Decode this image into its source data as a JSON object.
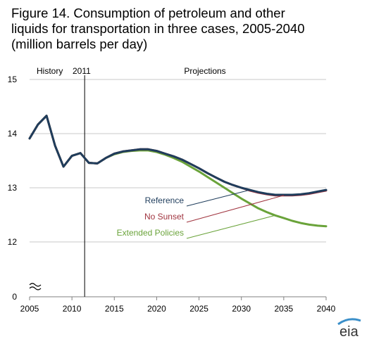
{
  "title_lines": [
    "Figure 14. Consumption of petroleum and other",
    "liquids for transportation in three cases, 2005-2040",
    "(million barrels per day)"
  ],
  "chart_data": {
    "type": "line",
    "title": "Figure 14. Consumption of petroleum and other liquids for transportation in three cases, 2005-2040 (million barrels per day)",
    "xlabel": "",
    "ylabel": "",
    "xlim": [
      2005,
      2040
    ],
    "ylim_display": [
      12,
      15
    ],
    "axis_break_below": 12,
    "x_ticks": [
      "2005",
      "2010",
      "2015",
      "2020",
      "2025",
      "2030",
      "2035",
      "2040"
    ],
    "y_ticks": [
      "0",
      "12",
      "13",
      "14",
      "15"
    ],
    "grid": "horizontal",
    "divider_year": 2011.5,
    "labels": {
      "history": "History",
      "year": "2011",
      "projections": "Projections"
    },
    "colors": {
      "reference": "#1F3D5C",
      "no_sunset": "#A0343F",
      "extended": "#6AA33A",
      "axis": "#808080",
      "grid": "#C8C8C8"
    },
    "series": [
      {
        "name": "Reference",
        "color": "#1F3D5C",
        "x": [
          2005,
          2006,
          2007,
          2008,
          2009,
          2010,
          2011,
          2012,
          2013,
          2014,
          2015,
          2016,
          2017,
          2018,
          2019,
          2020,
          2021,
          2022,
          2023,
          2024,
          2025,
          2026,
          2027,
          2028,
          2029,
          2030,
          2031,
          2032,
          2033,
          2034,
          2035,
          2036,
          2037,
          2038,
          2039,
          2040
        ],
        "y": [
          13.91,
          14.17,
          14.33,
          13.78,
          13.39,
          13.59,
          13.64,
          13.46,
          13.45,
          13.55,
          13.63,
          13.67,
          13.69,
          13.71,
          13.71,
          13.68,
          13.63,
          13.58,
          13.52,
          13.44,
          13.36,
          13.27,
          13.19,
          13.11,
          13.05,
          13.0,
          12.96,
          12.92,
          12.89,
          12.87,
          12.87,
          12.87,
          12.88,
          12.9,
          12.93,
          12.96
        ]
      },
      {
        "name": "No Sunset",
        "color": "#A0343F",
        "x": [
          2005,
          2006,
          2007,
          2008,
          2009,
          2010,
          2011,
          2012,
          2013,
          2014,
          2015,
          2016,
          2017,
          2018,
          2019,
          2020,
          2021,
          2022,
          2023,
          2024,
          2025,
          2026,
          2027,
          2028,
          2029,
          2030,
          2031,
          2032,
          2033,
          2034,
          2035,
          2036,
          2037,
          2038,
          2039,
          2040
        ],
        "y": [
          13.91,
          14.17,
          14.33,
          13.78,
          13.39,
          13.59,
          13.64,
          13.46,
          13.45,
          13.55,
          13.63,
          13.67,
          13.69,
          13.71,
          13.71,
          13.68,
          13.63,
          13.58,
          13.52,
          13.44,
          13.36,
          13.27,
          13.19,
          13.11,
          13.05,
          13.0,
          12.95,
          12.91,
          12.88,
          12.86,
          12.86,
          12.86,
          12.87,
          12.89,
          12.92,
          12.95
        ]
      },
      {
        "name": "Extended Policies",
        "color": "#6AA33A",
        "x": [
          2005,
          2006,
          2007,
          2008,
          2009,
          2010,
          2011,
          2012,
          2013,
          2014,
          2015,
          2016,
          2017,
          2018,
          2019,
          2020,
          2021,
          2022,
          2023,
          2024,
          2025,
          2026,
          2027,
          2028,
          2029,
          2030,
          2031,
          2032,
          2033,
          2034,
          2035,
          2036,
          2037,
          2038,
          2039,
          2040
        ],
        "y": [
          13.91,
          14.17,
          14.33,
          13.78,
          13.39,
          13.59,
          13.64,
          13.46,
          13.45,
          13.55,
          13.62,
          13.66,
          13.68,
          13.69,
          13.69,
          13.66,
          13.61,
          13.55,
          13.48,
          13.39,
          13.3,
          13.2,
          13.1,
          13.0,
          12.9,
          12.8,
          12.71,
          12.62,
          12.55,
          12.49,
          12.44,
          12.39,
          12.35,
          12.32,
          12.3,
          12.29
        ]
      }
    ],
    "annotations": [
      {
        "text": "Reference",
        "series": 0,
        "at_x": 2031
      },
      {
        "text": "No Sunset",
        "series": 1,
        "at_x": 2035
      },
      {
        "text": "Extended Policies",
        "series": 2,
        "at_x": 2034
      }
    ]
  },
  "logo": {
    "text": "eia"
  }
}
